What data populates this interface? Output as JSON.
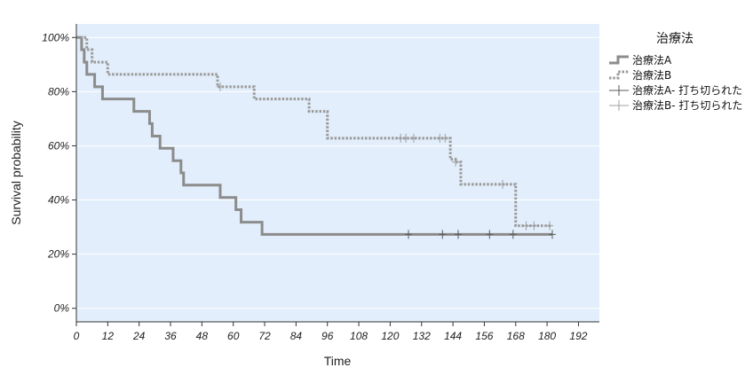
{
  "chart_data": {
    "type": "line",
    "subtype": "kaplan-meier",
    "xlabel": "Time",
    "ylabel": "Survival probability",
    "xlim": [
      0,
      200
    ],
    "ylim": [
      -0.05,
      1.05
    ],
    "x_ticks": [
      0,
      12,
      24,
      36,
      48,
      60,
      72,
      84,
      96,
      108,
      120,
      132,
      144,
      156,
      168,
      180,
      192
    ],
    "y_ticks": [
      0,
      0.2,
      0.4,
      0.6,
      0.8,
      1.0
    ],
    "y_tick_labels": [
      "0%",
      "20%",
      "40%",
      "60%",
      "80%",
      "100%"
    ],
    "grid": "horizontal",
    "background_color": "#e2eefb",
    "legend": {
      "title": "治療法",
      "position": "right",
      "entries": [
        {
          "label": "治療法A",
          "kind": "line",
          "style": "solid"
        },
        {
          "label": "治療法B",
          "kind": "line",
          "style": "dotted"
        },
        {
          "label": "治療法A- 打ち切られた",
          "kind": "censor",
          "color": "#5a5a5a"
        },
        {
          "label": "治療法B- 打ち切られた",
          "kind": "censor",
          "color": "#a0a0a0"
        }
      ]
    },
    "series": [
      {
        "name": "治療法A",
        "style": "solid",
        "color": "#8c8c8c",
        "censor_color": "#5a5a5a",
        "steps": [
          [
            0,
            1.0
          ],
          [
            2,
            0.955
          ],
          [
            3,
            0.909
          ],
          [
            4,
            0.864
          ],
          [
            7,
            0.818
          ],
          [
            10,
            0.773
          ],
          [
            22,
            0.727
          ],
          [
            28,
            0.682
          ],
          [
            29,
            0.636
          ],
          [
            32,
            0.591
          ],
          [
            37,
            0.545
          ],
          [
            40,
            0.5
          ],
          [
            41,
            0.455
          ],
          [
            55,
            0.409
          ],
          [
            61,
            0.364
          ],
          [
            63,
            0.318
          ],
          [
            71,
            0.273
          ]
        ],
        "end": 182,
        "censored": [
          127,
          140,
          146,
          158,
          167,
          182
        ]
      },
      {
        "name": "治療法B",
        "style": "dotted",
        "color": "#9a9a9a",
        "censor_color": "#a0a0a0",
        "steps": [
          [
            0,
            1.0
          ],
          [
            4,
            0.955
          ],
          [
            6,
            0.909
          ],
          [
            12,
            0.864
          ],
          [
            54,
            0.818
          ],
          [
            68,
            0.773
          ],
          [
            89,
            0.727
          ],
          [
            96,
            0.628
          ],
          [
            143,
            0.55
          ],
          [
            145,
            0.54
          ],
          [
            147,
            0.458
          ],
          [
            168,
            0.305
          ]
        ],
        "end": 182,
        "censored": [
          55,
          124,
          126,
          129,
          139,
          141,
          145,
          163,
          172,
          175,
          181
        ]
      }
    ]
  }
}
